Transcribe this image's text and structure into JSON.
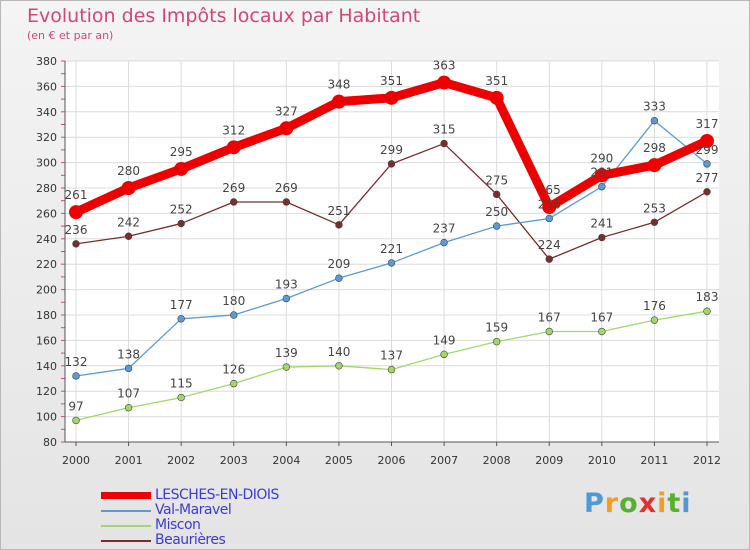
{
  "header": {
    "title": "Evolution des Impôts locaux par Habitant",
    "subtitle": "(en € et par an)"
  },
  "logo": {
    "letters": [
      "P",
      "r",
      "o",
      "x",
      "i",
      "t",
      "i"
    ],
    "colors": [
      "#4a9bd8",
      "#f0a020",
      "#58b030",
      "#e03030",
      "#f0a020",
      "#58b030",
      "#4a9bd8"
    ]
  },
  "chart_data": {
    "type": "line",
    "x": [
      "2000",
      "2001",
      "2002",
      "2003",
      "2004",
      "2005",
      "2006",
      "2007",
      "2008",
      "2009",
      "2010",
      "2011",
      "2012"
    ],
    "ylim": [
      80,
      380
    ],
    "yticks": [
      80,
      100,
      120,
      140,
      160,
      180,
      200,
      220,
      240,
      260,
      280,
      300,
      320,
      340,
      360,
      380
    ],
    "grid": true,
    "legend": "bottom-left",
    "series": [
      {
        "name": "LESCHES-EN-DIOIS",
        "values": [
          261,
          280,
          295,
          312,
          327,
          348,
          351,
          363,
          351,
          265,
          290,
          298,
          317
        ],
        "labels": [
          "261",
          "280",
          "295",
          "312",
          "327",
          "348",
          "351",
          "363",
          "351",
          "265",
          "290",
          "298",
          "317"
        ],
        "color": "#ee0000"
      },
      {
        "name": "Val-Maravel",
        "values": [
          132,
          138,
          177,
          180,
          193,
          209,
          221,
          237,
          250,
          256,
          281,
          333,
          299
        ],
        "labels": [
          "132",
          "138",
          "177",
          "180",
          "193",
          "209",
          "221",
          "237",
          "250",
          "256",
          "281",
          "333",
          "299"
        ],
        "color": "#5b9bd5"
      },
      {
        "name": "Miscon",
        "values": [
          97,
          107,
          115,
          126,
          139,
          140,
          137,
          149,
          159,
          167,
          167,
          176,
          183
        ],
        "labels": [
          "97",
          "107",
          "115",
          "126",
          "139",
          "140",
          "137",
          "149",
          "159",
          "167",
          "167",
          "176",
          "183"
        ],
        "color": "#a2d86a"
      },
      {
        "name": "Beaurières",
        "values": [
          236,
          242,
          252,
          269,
          269,
          251,
          299,
          315,
          275,
          224,
          241,
          253,
          277
        ],
        "labels": [
          "236",
          "242",
          "252",
          "269",
          "269",
          "251",
          "299",
          "315",
          "275",
          "224",
          "241",
          "253",
          "277"
        ],
        "color": "#7b2d2d"
      }
    ]
  }
}
